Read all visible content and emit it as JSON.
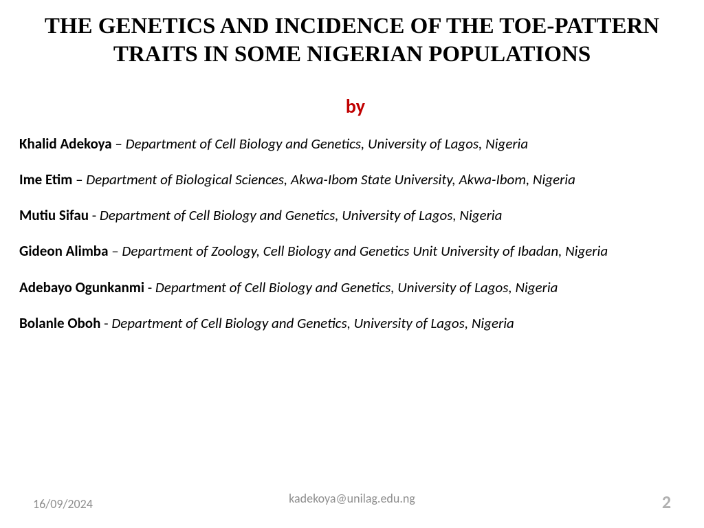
{
  "title": "THE GENETICS AND INCIDENCE OF THE TOE-PATTERN TRAITS IN SOME NIGERIAN POPULATIONS",
  "by_label": "by",
  "authors": [
    {
      "name": "Khalid Adekoya",
      "sep": " – ",
      "affil": "Department of Cell Biology and Genetics, University of Lagos, Nigeria"
    },
    {
      "name": "Ime Etim",
      "sep": " – ",
      "affil": "Department of Biological Sciences, Akwa-Ibom State University, Akwa-Ibom, Nigeria"
    },
    {
      "name": "Mutiu Sifau",
      "sep": " -  ",
      "affil": "Department of Cell Biology and Genetics, University of Lagos, Nigeria"
    },
    {
      "name": "Gideon Alimba",
      "sep": " – ",
      "affil": "Department of Zoology, Cell Biology and Genetics Unit University of Ibadan, Nigeria"
    },
    {
      "name": "Adebayo Ogunkanmi",
      "sep": " -  ",
      "affil": "Department of Cell Biology and Genetics, University of Lagos, Nigeria"
    },
    {
      "name": "Bolanle Oboh",
      "sep": " - ",
      "affil": "Department of Cell Biology and Genetics, University of Lagos, Nigeria"
    }
  ],
  "footer": {
    "date": "16/09/2024",
    "email": "kadekoya@unilag.edu.ng",
    "page": "2"
  },
  "colors": {
    "title": "#000000",
    "by": "#c00000",
    "text": "#000000",
    "footer": "#8f8f8f",
    "page_number": "#b0b0b0",
    "background": "#ffffff"
  }
}
